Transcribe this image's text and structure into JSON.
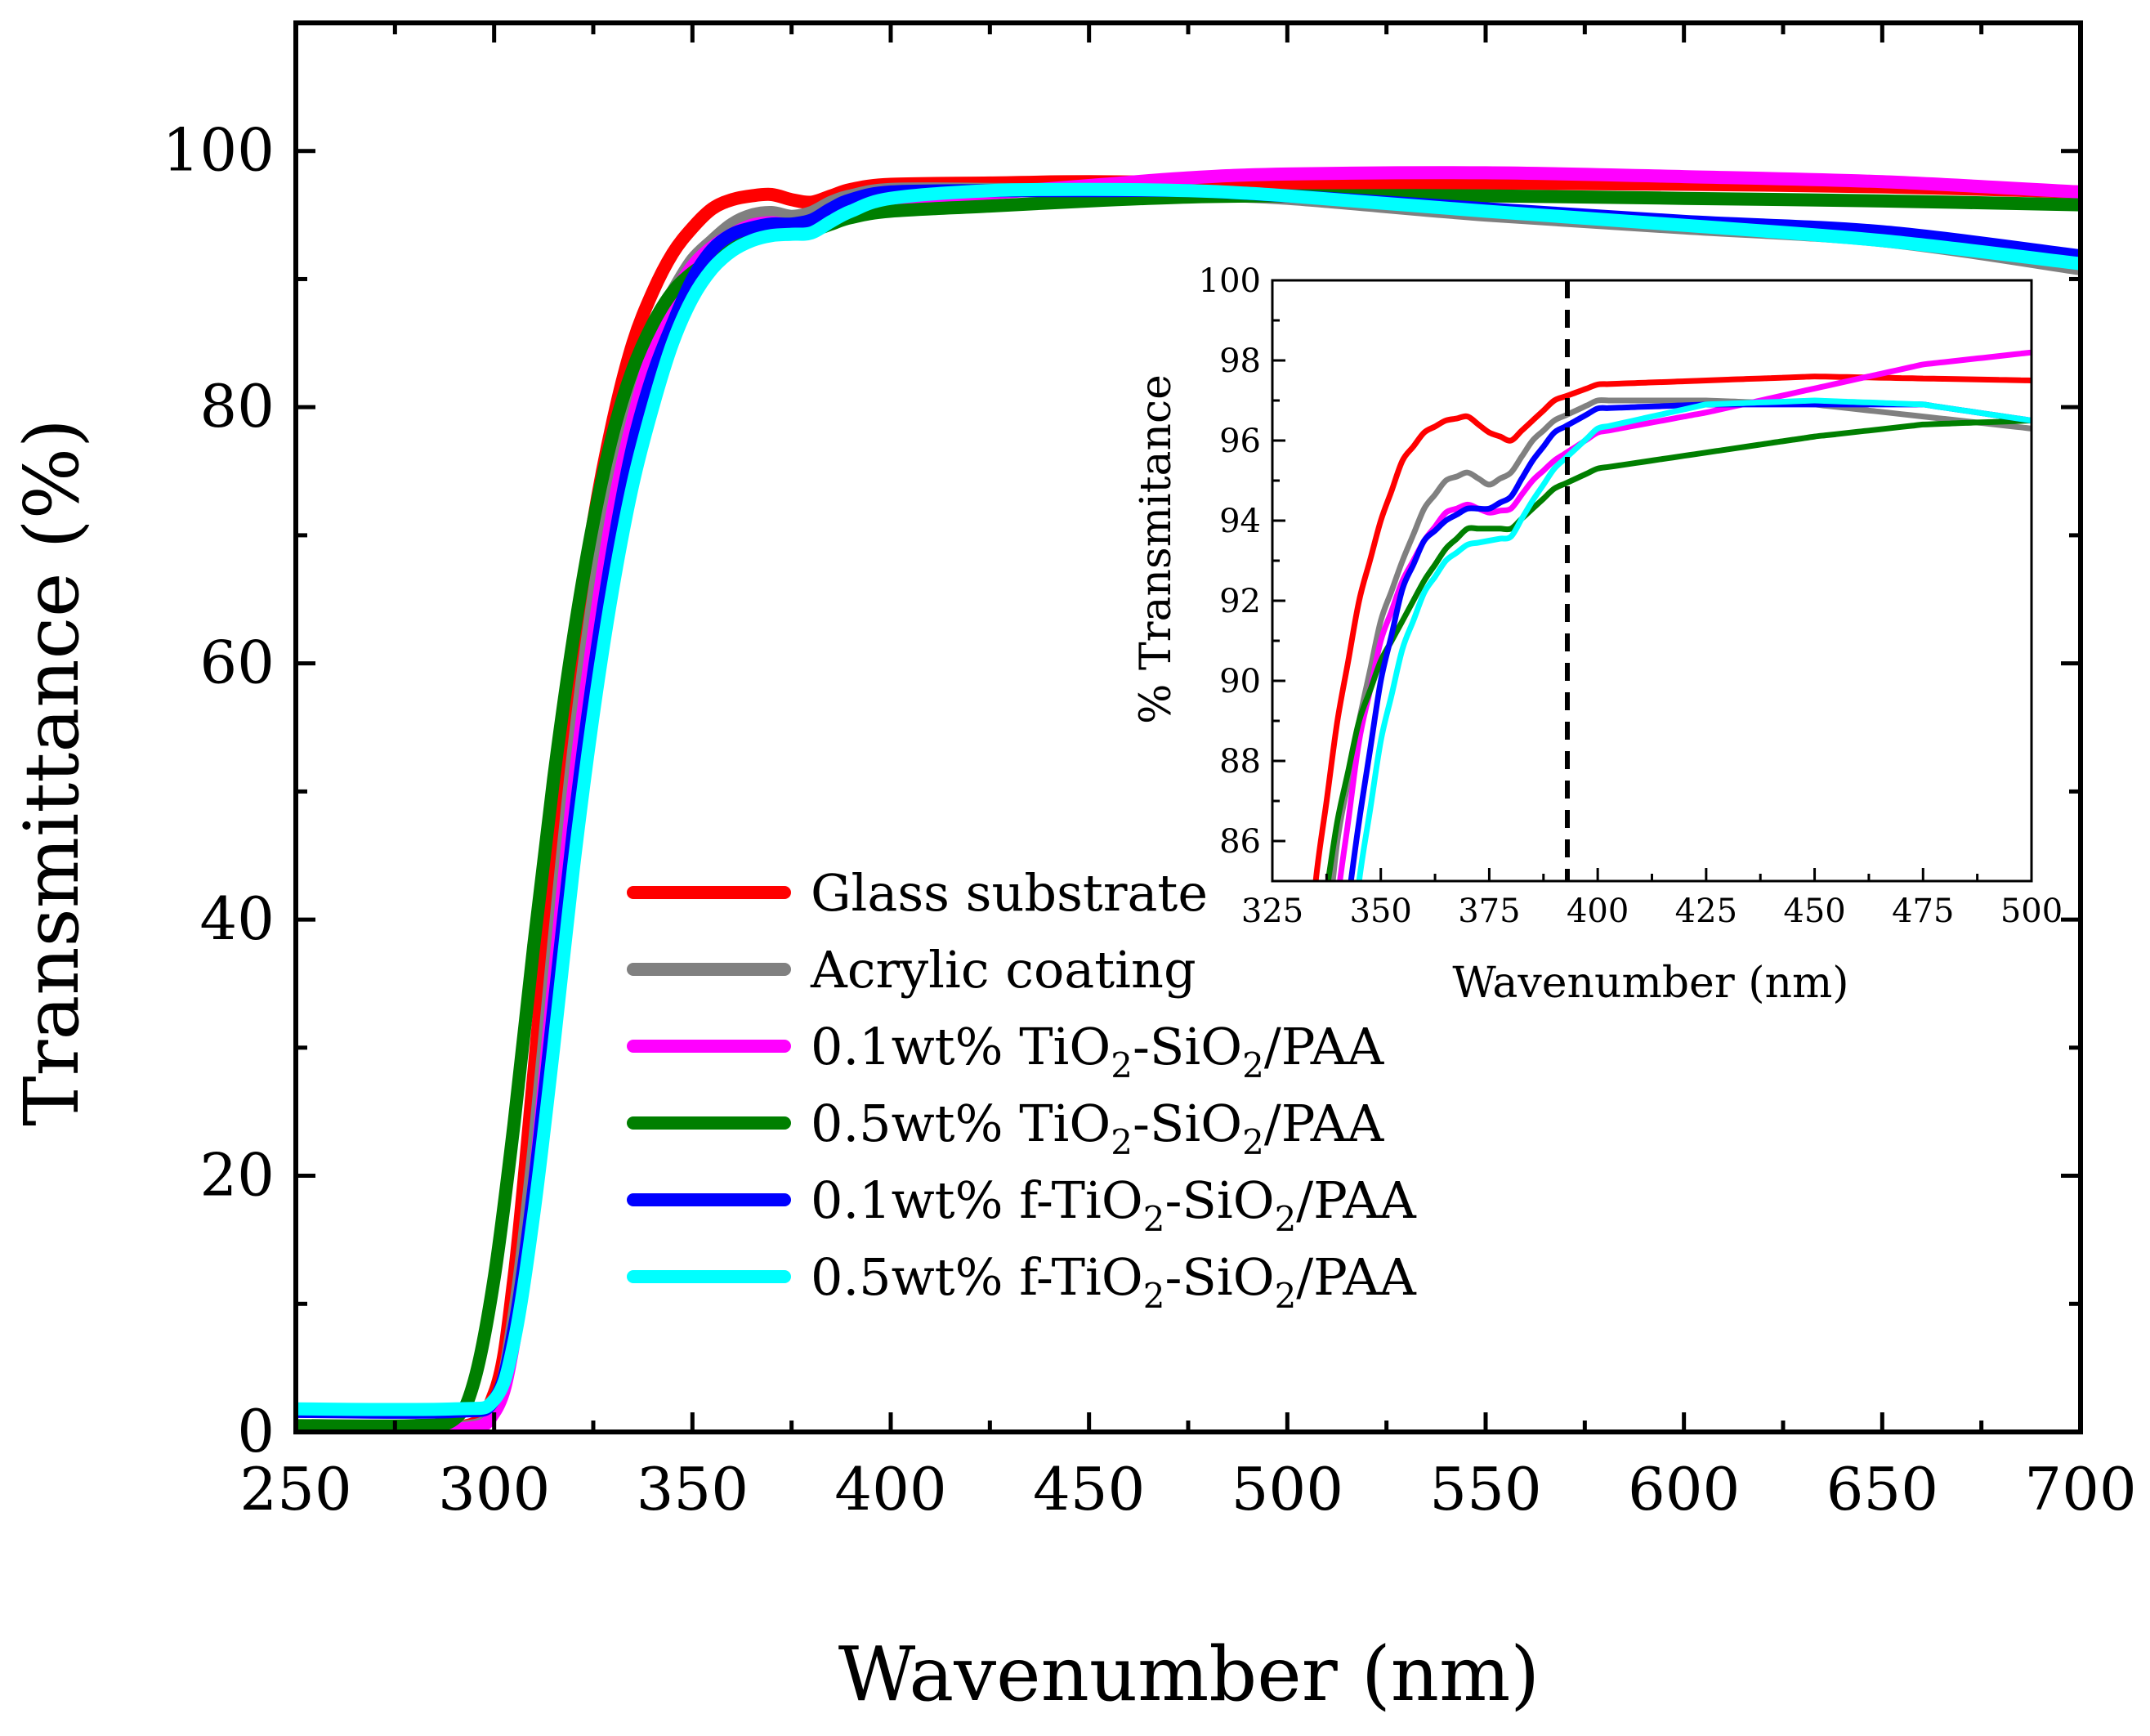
{
  "chart_data": [
    {
      "id": "main",
      "type": "line",
      "xlabel": "Wavenumber (nm)",
      "ylabel": "Transmittance (%)",
      "xlim": [
        250,
        700
      ],
      "ylim": [
        0,
        110
      ],
      "xticks": [
        250,
        300,
        350,
        400,
        450,
        500,
        550,
        600,
        650,
        700
      ],
      "yticks": [
        0,
        20,
        40,
        60,
        80,
        100
      ],
      "grid": false,
      "legend_position": "bottom-center",
      "series": [
        {
          "name": "Glass substrate",
          "color": "#ff0000",
          "x": [
            250,
            290,
            300,
            305,
            310,
            315,
            320,
            325,
            330,
            335,
            340,
            345,
            350,
            355,
            360,
            365,
            370,
            375,
            380,
            385,
            390,
            400,
            425,
            450,
            500,
            550,
            600,
            650,
            700
          ],
          "y": [
            0.3,
            0.3,
            3,
            12,
            28,
            45,
            60,
            71,
            79,
            85,
            89,
            92,
            94,
            95.5,
            96.2,
            96.5,
            96.6,
            96.2,
            96.0,
            96.5,
            97.0,
            97.4,
            97.5,
            97.6,
            97.5,
            97.5,
            97.4,
            97.2,
            96.8
          ]
        },
        {
          "name": "Acrylic coating",
          "color": "#808080",
          "x": [
            250,
            290,
            300,
            305,
            310,
            315,
            320,
            325,
            330,
            335,
            340,
            345,
            350,
            355,
            360,
            365,
            370,
            375,
            380,
            385,
            390,
            400,
            425,
            450,
            475,
            500,
            550,
            600,
            650,
            700
          ],
          "y": [
            0.3,
            0.3,
            2,
            9,
            22,
            38,
            53,
            65,
            74,
            81,
            86,
            89,
            91.5,
            93,
            94.3,
            95,
            95.2,
            94.9,
            95.2,
            96.0,
            96.5,
            97.0,
            97.0,
            96.9,
            96.6,
            96.3,
            95.0,
            94.0,
            93.0,
            90.8
          ]
        },
        {
          "name": "0.1wt% TiO2-SiO2/PAA",
          "color": "#ff00ff",
          "x": [
            250,
            290,
            300,
            305,
            310,
            315,
            320,
            325,
            330,
            335,
            340,
            345,
            350,
            355,
            360,
            365,
            370,
            375,
            380,
            385,
            390,
            400,
            425,
            450,
            475,
            500,
            550,
            600,
            650,
            700
          ],
          "y": [
            0.2,
            0.2,
            1.5,
            7,
            19,
            35,
            50,
            62,
            72,
            79,
            84.5,
            88.5,
            91,
            92.5,
            93.5,
            94.2,
            94.4,
            94.2,
            94.3,
            95.0,
            95.5,
            96.2,
            96.7,
            97.3,
            97.9,
            98.2,
            98.3,
            98.0,
            97.6,
            96.8
          ]
        },
        {
          "name": "0.5wt% TiO2-SiO2/PAA",
          "color": "#007f00",
          "x": [
            250,
            280,
            290,
            295,
            300,
            305,
            310,
            315,
            320,
            325,
            330,
            335,
            340,
            345,
            350,
            355,
            360,
            365,
            370,
            375,
            380,
            385,
            390,
            400,
            425,
            450,
            475,
            500,
            550,
            600,
            650,
            700
          ],
          "y": [
            0.5,
            0.5,
            1,
            4,
            12,
            24,
            38,
            51,
            62,
            71,
            78,
            83,
            86.5,
            89,
            90.5,
            91.5,
            92.5,
            93.3,
            93.8,
            93.8,
            93.8,
            94.3,
            94.8,
            95.3,
            95.7,
            96.1,
            96.4,
            96.5,
            96.5,
            96.3,
            96.1,
            95.8
          ]
        },
        {
          "name": "0.1wt% f-TiO2-SiO2/PAA",
          "color": "#0000ff",
          "x": [
            250,
            290,
            300,
            305,
            310,
            315,
            320,
            325,
            330,
            335,
            340,
            345,
            350,
            355,
            360,
            365,
            370,
            375,
            380,
            385,
            390,
            400,
            425,
            450,
            475,
            500,
            550,
            600,
            650,
            700
          ],
          "y": [
            1.6,
            1.6,
            2.5,
            8,
            19,
            33,
            47,
            59,
            69,
            77,
            82.5,
            86.5,
            90,
            92.3,
            93.5,
            94.0,
            94.3,
            94.3,
            94.6,
            95.5,
            96.2,
            96.8,
            96.9,
            96.9,
            96.9,
            96.5,
            95.5,
            94.5,
            93.7,
            91.8
          ]
        },
        {
          "name": "0.5wt% f-TiO2-SiO2/PAA",
          "color": "#00ffff",
          "x": [
            250,
            290,
            300,
            305,
            310,
            315,
            320,
            325,
            330,
            335,
            340,
            345,
            350,
            355,
            360,
            365,
            370,
            375,
            380,
            385,
            390,
            400,
            425,
            450,
            475,
            500,
            550,
            600,
            650,
            700
          ],
          "y": [
            1.8,
            1.8,
            2.5,
            7,
            17,
            30,
            44,
            56,
            66,
            74,
            80,
            85,
            88.5,
            90.8,
            92.2,
            93.0,
            93.4,
            93.5,
            93.6,
            94.5,
            95.3,
            96.3,
            96.9,
            97.0,
            96.9,
            96.5,
            95.3,
            94.2,
            93.0,
            91.2
          ]
        }
      ]
    },
    {
      "id": "inset",
      "type": "line",
      "xlabel": "Wavenumber (nm)",
      "ylabel": "% Transmitance",
      "xlim": [
        325,
        500
      ],
      "ylim": [
        85,
        100
      ],
      "xticks": [
        325,
        350,
        375,
        400,
        425,
        450,
        475,
        500
      ],
      "yticks": [
        86,
        88,
        90,
        92,
        94,
        96,
        98,
        100
      ],
      "reference_line_x": 393,
      "grid": false
    }
  ]
}
